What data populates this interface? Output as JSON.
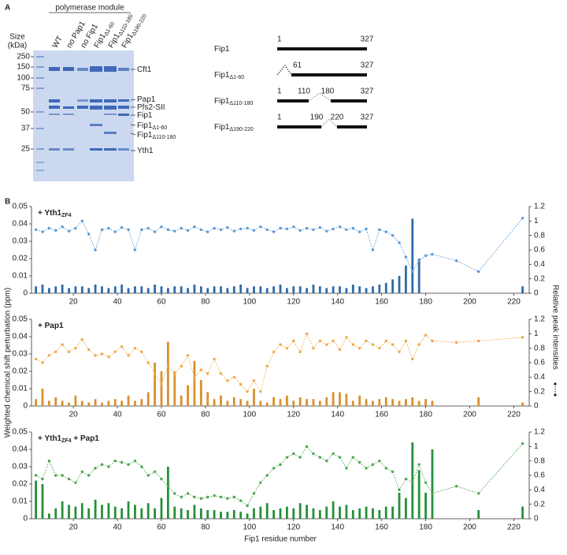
{
  "panel_a": {
    "label": "A",
    "header": "polymerase module",
    "size_label": [
      "Size",
      "(kDa)"
    ],
    "markers": [
      250,
      150,
      100,
      75,
      50,
      37,
      25
    ],
    "lanes": [
      {
        "main": "WT",
        "sub": ""
      },
      {
        "main": "no Pap1",
        "sub": ""
      },
      {
        "main": "no Fip1",
        "sub": ""
      },
      {
        "main": "Fip1",
        "sub": "Δ1-60"
      },
      {
        "main": "Fip1",
        "sub": "Δ110-180"
      },
      {
        "main": "Fip1",
        "sub": "Δ190-220"
      }
    ],
    "bands": [
      {
        "main": "Cft1",
        "sub": ""
      },
      {
        "main": "Pap1",
        "sub": ""
      },
      {
        "main": "Pfs2-SII",
        "sub": ""
      },
      {
        "main": "Fip1",
        "sub": ""
      },
      {
        "main": "Fip1",
        "sub": "Δ1-60"
      },
      {
        "main": "Fip1",
        "sub": "Δ110-180"
      },
      {
        "main": "Yth1",
        "sub": ""
      }
    ],
    "constructs": [
      {
        "main": "Fip1",
        "sub": "",
        "numbers": [
          1,
          327
        ]
      },
      {
        "main": "Fip1",
        "sub": "Δ1-60",
        "numbers": [
          61,
          327
        ]
      },
      {
        "main": "Fip1",
        "sub": "Δ110-180",
        "numbers": [
          1,
          110,
          180,
          327
        ]
      },
      {
        "main": "Fip1",
        "sub": "Δ190-220",
        "numbers": [
          1,
          190,
          220,
          327
        ]
      }
    ]
  },
  "panel_b_label": "B",
  "chart_data": [
    {
      "type": "bar",
      "annotation": {
        "main": "+ Yth1",
        "sub": "ZF4",
        "tail": ""
      },
      "xlim": [
        1,
        227
      ],
      "xticks": [
        20,
        40,
        60,
        80,
        100,
        120,
        140,
        160,
        180,
        200,
        220
      ],
      "ylim": [
        0,
        0.05
      ],
      "yticks": [
        0,
        0.01,
        0.02,
        0.03,
        0.04,
        0.05
      ],
      "y2lim": [
        0,
        1.2
      ],
      "y2ticks": [
        0,
        0.2,
        0.4,
        0.6,
        0.8,
        1.0,
        1.2
      ],
      "x": [
        3,
        6,
        9,
        12,
        15,
        18,
        21,
        24,
        27,
        30,
        33,
        36,
        39,
        42,
        45,
        48,
        51,
        54,
        57,
        60,
        63,
        66,
        69,
        72,
        75,
        78,
        81,
        84,
        87,
        90,
        93,
        96,
        99,
        102,
        105,
        108,
        111,
        114,
        117,
        120,
        123,
        126,
        129,
        132,
        135,
        138,
        141,
        144,
        147,
        150,
        153,
        156,
        159,
        162,
        165,
        168,
        171,
        174,
        177,
        180,
        183,
        194,
        204,
        224
      ],
      "series": [
        {
          "type": "bar",
          "color": "#2f6aa8",
          "values": [
            0.004,
            0.005,
            0.003,
            0.004,
            0.005,
            0.003,
            0.004,
            0.004,
            0.003,
            0.005,
            0.004,
            0.003,
            0.004,
            0.005,
            0.003,
            0.004,
            0.004,
            0.003,
            0.005,
            0.004,
            0.003,
            0.004,
            0.004,
            0.003,
            0.005,
            0.004,
            0.003,
            0.004,
            0.004,
            0.003,
            0.004,
            0.005,
            0.003,
            0.004,
            0.004,
            0.003,
            0.004,
            0.005,
            0.003,
            0.004,
            0.004,
            0.003,
            0.005,
            0.004,
            0.003,
            0.004,
            0.004,
            0.003,
            0.005,
            0.004,
            0.003,
            0.004,
            0.005,
            0.006,
            0.008,
            0.01,
            0.016,
            0.043,
            0.02,
            null,
            null,
            null,
            null,
            0.004
          ]
        },
        {
          "type": "line",
          "axis": "y2",
          "color": "#5b9bd5",
          "values": [
            0.88,
            0.85,
            0.9,
            0.87,
            0.92,
            0.86,
            0.9,
            1.0,
            0.82,
            0.6,
            0.88,
            0.9,
            0.85,
            0.91,
            0.88,
            0.6,
            0.88,
            0.9,
            0.85,
            0.92,
            0.88,
            0.86,
            0.9,
            0.87,
            0.92,
            0.88,
            0.85,
            0.9,
            0.88,
            0.91,
            0.86,
            0.89,
            0.9,
            0.87,
            0.92,
            0.88,
            0.85,
            0.9,
            0.89,
            0.92,
            0.87,
            0.9,
            0.88,
            0.91,
            0.86,
            0.89,
            0.92,
            0.88,
            0.9,
            0.85,
            0.89,
            0.6,
            0.88,
            0.85,
            0.8,
            0.7,
            0.5,
            0.3,
            0.45,
            0.52,
            0.54,
            0.45,
            0.3,
            1.04
          ]
        }
      ]
    },
    {
      "type": "bar",
      "annotation": {
        "main": "+ Pap1",
        "sub": "",
        "tail": ""
      },
      "ylabel": "Weighted chemical shift perturbation (ppm)",
      "y2label": "Relative peak intensities",
      "xlim": [
        1,
        227
      ],
      "xticks": [
        20,
        40,
        60,
        80,
        100,
        120,
        140,
        160,
        180,
        200,
        220
      ],
      "ylim": [
        0,
        0.05
      ],
      "yticks": [
        0,
        0.01,
        0.02,
        0.03,
        0.04,
        0.05
      ],
      "y2lim": [
        0,
        1.2
      ],
      "y2ticks": [
        0,
        0.2,
        0.4,
        0.6,
        0.8,
        1.0,
        1.2
      ],
      "x": [
        3,
        6,
        9,
        12,
        15,
        18,
        21,
        24,
        27,
        30,
        33,
        36,
        39,
        42,
        45,
        48,
        51,
        54,
        57,
        60,
        63,
        66,
        69,
        72,
        75,
        78,
        81,
        84,
        87,
        90,
        93,
        96,
        99,
        102,
        105,
        108,
        111,
        114,
        117,
        120,
        123,
        126,
        129,
        132,
        135,
        138,
        141,
        144,
        147,
        150,
        153,
        156,
        159,
        162,
        165,
        168,
        171,
        174,
        177,
        180,
        183,
        194,
        204,
        224
      ],
      "series": [
        {
          "type": "bar",
          "color": "#d9902c",
          "values": [
            0.004,
            0.01,
            0.003,
            0.005,
            0.003,
            0.002,
            0.006,
            0.003,
            0.002,
            0.004,
            0.002,
            0.003,
            0.004,
            0.003,
            0.006,
            0.003,
            0.004,
            0.008,
            0.025,
            0.02,
            0.037,
            0.02,
            0.006,
            0.012,
            0.026,
            0.015,
            0.008,
            0.004,
            0.006,
            0.003,
            0.005,
            0.004,
            0.003,
            0.01,
            0.003,
            0.002,
            0.005,
            0.004,
            0.006,
            0.003,
            0.005,
            0.004,
            0.004,
            0.003,
            0.005,
            0.008,
            0.008,
            0.007,
            0.003,
            0.006,
            0.004,
            0.003,
            0.004,
            0.005,
            0.004,
            0.003,
            0.004,
            0.005,
            0.003,
            0.004,
            0.003,
            null,
            0.005,
            0.002
          ]
        },
        {
          "type": "line",
          "axis": "y2",
          "color": "#f0a848",
          "values": [
            0.65,
            0.6,
            0.7,
            0.75,
            0.85,
            0.75,
            0.8,
            0.92,
            0.78,
            0.7,
            0.72,
            0.68,
            0.75,
            0.82,
            0.7,
            0.8,
            0.75,
            0.6,
            0.45,
            0.3,
            0.55,
            0.45,
            0.55,
            0.7,
            0.4,
            0.5,
            0.45,
            0.65,
            0.45,
            0.35,
            0.4,
            0.3,
            0.2,
            0.35,
            0.2,
            0.55,
            0.75,
            0.85,
            0.8,
            0.9,
            0.75,
            1.0,
            0.8,
            0.9,
            0.85,
            0.9,
            0.78,
            0.95,
            0.85,
            0.8,
            0.9,
            0.85,
            0.8,
            0.9,
            0.85,
            0.75,
            0.9,
            0.65,
            0.85,
            0.98,
            0.9,
            0.88,
            0.9,
            0.95
          ]
        }
      ]
    },
    {
      "type": "bar",
      "annotation": {
        "main": "+ Yth1",
        "sub": "ZF4",
        "tail": " + Pap1"
      },
      "xlabel": "Fip1 residue number",
      "xlim": [
        1,
        227
      ],
      "xticks": [
        20,
        40,
        60,
        80,
        100,
        120,
        140,
        160,
        180,
        200,
        220
      ],
      "ylim": [
        0,
        0.05
      ],
      "yticks": [
        0,
        0.01,
        0.02,
        0.03,
        0.04,
        0.05
      ],
      "y2lim": [
        0,
        1.2
      ],
      "y2ticks": [
        0,
        0.2,
        0.4,
        0.6,
        0.8,
        1.0,
        1.2
      ],
      "x": [
        3,
        6,
        9,
        12,
        15,
        18,
        21,
        24,
        27,
        30,
        33,
        36,
        39,
        42,
        45,
        48,
        51,
        54,
        57,
        60,
        63,
        66,
        69,
        72,
        75,
        78,
        81,
        84,
        87,
        90,
        93,
        96,
        99,
        102,
        105,
        108,
        111,
        114,
        117,
        120,
        123,
        126,
        129,
        132,
        135,
        138,
        141,
        144,
        147,
        150,
        153,
        156,
        159,
        162,
        165,
        168,
        171,
        174,
        177,
        180,
        183,
        194,
        204,
        224
      ],
      "series": [
        {
          "type": "bar",
          "color": "#25903a",
          "values": [
            0.022,
            0.02,
            0.003,
            0.006,
            0.01,
            0.008,
            0.007,
            0.009,
            0.006,
            0.011,
            0.008,
            0.009,
            0.007,
            0.006,
            0.01,
            0.008,
            0.006,
            0.009,
            0.006,
            0.012,
            0.03,
            0.007,
            0.006,
            0.005,
            0.008,
            0.006,
            0.005,
            0.005,
            0.004,
            0.004,
            0.005,
            0.004,
            0.003,
            0.006,
            0.007,
            0.009,
            0.005,
            0.006,
            0.007,
            0.006,
            0.009,
            0.008,
            0.006,
            0.005,
            0.007,
            0.01,
            0.007,
            0.008,
            0.005,
            0.006,
            0.007,
            0.006,
            0.005,
            0.007,
            0.007,
            0.015,
            0.012,
            0.044,
            0.028,
            0.015,
            0.04,
            null,
            0.005,
            0.007
          ]
        },
        {
          "type": "line",
          "axis": "y2",
          "color": "#4aa84e",
          "values": [
            0.6,
            0.55,
            0.8,
            0.6,
            0.6,
            0.55,
            0.5,
            0.65,
            0.6,
            0.7,
            0.75,
            0.72,
            0.8,
            0.78,
            0.75,
            0.8,
            0.72,
            0.6,
            0.65,
            0.55,
            0.45,
            0.35,
            0.3,
            0.35,
            0.3,
            0.28,
            0.3,
            0.32,
            0.3,
            0.28,
            0.3,
            0.25,
            0.18,
            0.35,
            0.5,
            0.6,
            0.7,
            0.75,
            0.85,
            0.9,
            0.85,
            1.0,
            0.9,
            0.85,
            0.8,
            0.9,
            0.85,
            0.7,
            0.85,
            0.78,
            0.7,
            0.75,
            0.8,
            0.7,
            0.65,
            0.4,
            0.55,
            0.5,
            0.75,
            0.5,
            0.35,
            0.45,
            0.35,
            1.04
          ]
        }
      ]
    }
  ]
}
